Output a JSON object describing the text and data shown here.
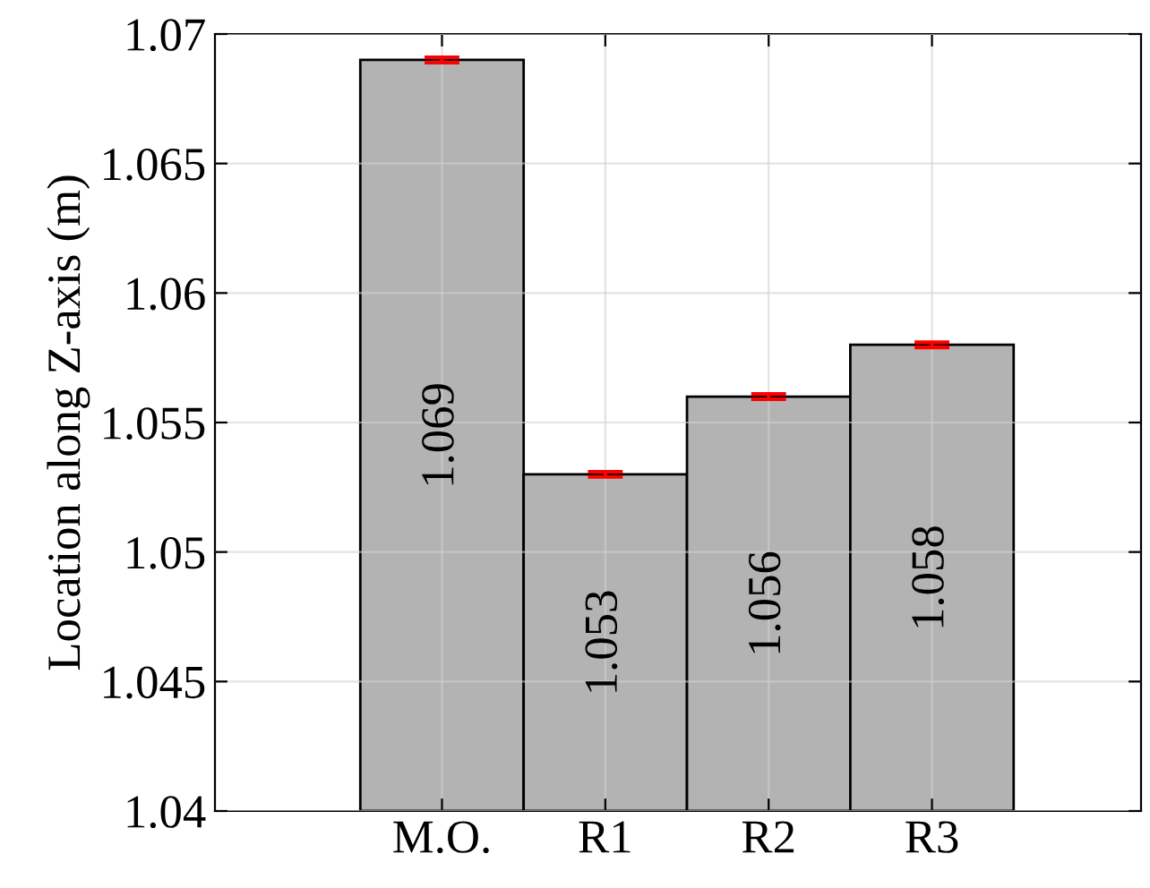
{
  "chart_data": {
    "type": "bar",
    "ylabel": "Location along Z-axis (m)",
    "categories": [
      "M.O.",
      "R1",
      "R2",
      "R3"
    ],
    "values": [
      1.069,
      1.053,
      1.056,
      1.058
    ],
    "errors": [
      0.0001,
      0.0001,
      0.0001,
      0.0001
    ],
    "color": "#b3b3b3",
    "ylim": [
      1.04,
      1.07
    ],
    "yticks": [
      1.04,
      1.045,
      1.05,
      1.055,
      1.06,
      1.065,
      1.07
    ],
    "grid": true,
    "data_labels": true
  }
}
